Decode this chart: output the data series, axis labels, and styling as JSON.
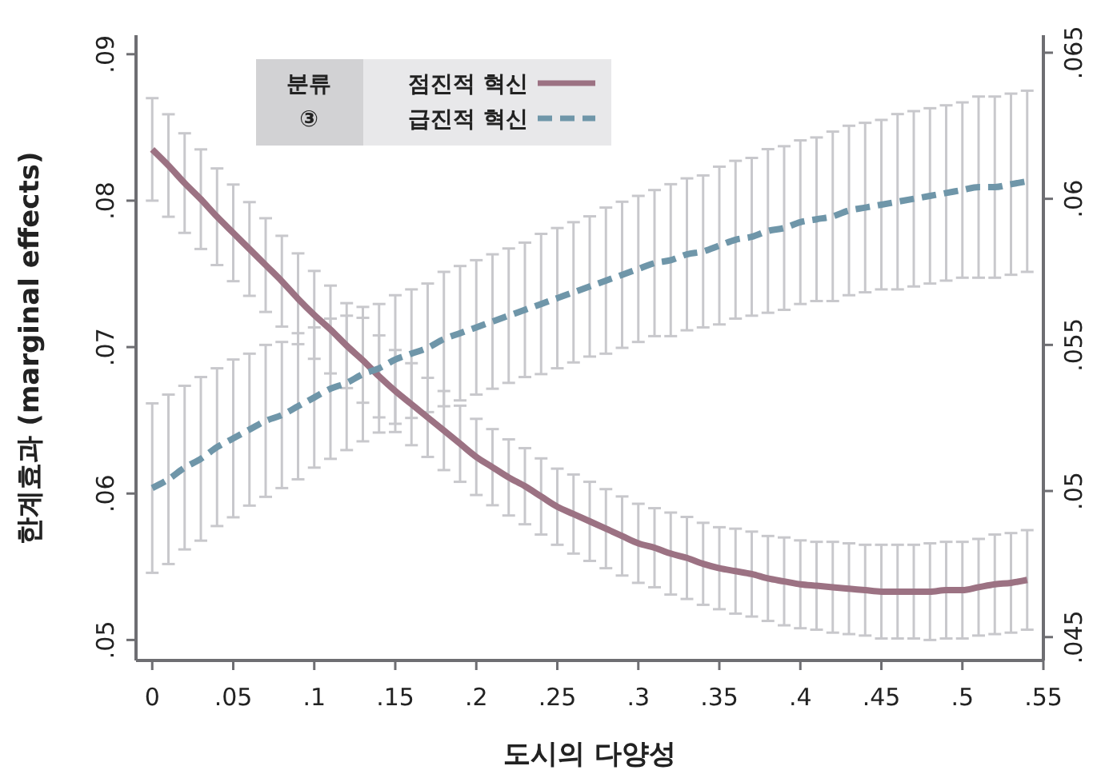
{
  "chart_data": {
    "type": "line",
    "xlabel": "도시의 다양성",
    "ylabel": "한계효과 (marginal effects)",
    "legend_title": "분류 ③",
    "legend": "top left",
    "grid": false,
    "marker": "none",
    "x": [
      0,
      0.01,
      0.02,
      0.03,
      0.04,
      0.05,
      0.06,
      0.07,
      0.08,
      0.09,
      0.1,
      0.11,
      0.12,
      0.13,
      0.14,
      0.15,
      0.16,
      0.17,
      0.18,
      0.19,
      0.2,
      0.21,
      0.22,
      0.23,
      0.24,
      0.25,
      0.26,
      0.27,
      0.28,
      0.29,
      0.3,
      0.31,
      0.32,
      0.33,
      0.34,
      0.35,
      0.36,
      0.37,
      0.38,
      0.39,
      0.4,
      0.41,
      0.42,
      0.43,
      0.44,
      0.45,
      0.46,
      0.47,
      0.48,
      0.49,
      0.5,
      0.51,
      0.52,
      0.53,
      0.54
    ],
    "xlim": [
      -0.01,
      0.55
    ],
    "xticks": [
      0,
      {
        "value": 0.05,
        "label": ".05"
      },
      {
        "value": 0.1,
        "label": ".1"
      },
      {
        "value": 0.15,
        "label": ".15"
      },
      {
        "value": 0.2,
        "label": ".2"
      },
      {
        "value": 0.25,
        "label": ".25"
      },
      {
        "value": 0.3,
        "label": ".3"
      },
      {
        "value": 0.35,
        "label": ".35"
      },
      {
        "value": 0.4,
        "label": ".4"
      },
      {
        "value": 0.45,
        "label": ".45"
      },
      {
        "value": 0.5,
        "label": ".5"
      },
      {
        "value": 0.55,
        "label": ".55"
      }
    ],
    "ylim": [
      0.0486,
      0.0913
    ],
    "yticks": [
      {
        "value": 0.05,
        "label": ".05"
      },
      {
        "value": 0.06,
        "label": ".06"
      },
      {
        "value": 0.07,
        "label": ".07"
      },
      {
        "value": 0.08,
        "label": ".08"
      },
      {
        "value": 0.09,
        "label": ".09"
      }
    ],
    "y2lim": [
      0.0442,
      0.0656
    ],
    "y2ticks": [
      {
        "value": 0.045,
        "label": ".045"
      },
      {
        "value": 0.05,
        "label": ".05"
      },
      {
        "value": 0.055,
        "label": ".055"
      },
      {
        "value": 0.06,
        "label": ".06"
      },
      {
        "value": 0.065,
        "label": ".065"
      }
    ],
    "series": [
      {
        "name": "점진적 혁신",
        "color": "#9c7283",
        "line_style": "solid",
        "values": [
          0.0835,
          0.0824,
          0.0812,
          0.0801,
          0.0789,
          0.0778,
          0.0767,
          0.0756,
          0.0745,
          0.0733,
          0.0722,
          0.0712,
          0.0701,
          0.0691,
          0.068,
          0.067,
          0.0661,
          0.0652,
          0.0643,
          0.0634,
          0.0625,
          0.0618,
          0.0611,
          0.0605,
          0.0598,
          0.0591,
          0.0586,
          0.0581,
          0.0576,
          0.0571,
          0.0566,
          0.0563,
          0.0559,
          0.0556,
          0.0552,
          0.0549,
          0.0547,
          0.0545,
          0.0542,
          0.054,
          0.0538,
          0.0537,
          0.0536,
          0.0535,
          0.0534,
          0.0533,
          0.0533,
          0.0533,
          0.0533,
          0.0534,
          0.0534,
          0.0536,
          0.0538,
          0.0539,
          0.0541
        ],
        "errors": [
          0.0035,
          0.0035,
          0.0034,
          0.0034,
          0.0033,
          0.0033,
          0.0032,
          0.0032,
          0.0031,
          0.0031,
          0.003,
          0.003,
          0.0029,
          0.0029,
          0.0028,
          0.0028,
          0.0028,
          0.0027,
          0.0027,
          0.0026,
          0.0026,
          0.0026,
          0.0026,
          0.0026,
          0.0026,
          0.0026,
          0.0027,
          0.0027,
          0.0027,
          0.0027,
          0.0027,
          0.0027,
          0.0028,
          0.0028,
          0.0028,
          0.0028,
          0.0029,
          0.0029,
          0.0029,
          0.003,
          0.003,
          0.003,
          0.0031,
          0.0031,
          0.0031,
          0.0032,
          0.0032,
          0.0032,
          0.0033,
          0.0033,
          0.0033,
          0.0033,
          0.0034,
          0.0034,
          0.0034
        ]
      },
      {
        "name": "급진적 혁신",
        "color": "#6f96a9",
        "line_style": "dashed",
        "axis": "y2",
        "values": [
          0.0501,
          0.0504,
          0.0508,
          0.0511,
          0.0515,
          0.0518,
          0.0521,
          0.0524,
          0.0526,
          0.0529,
          0.0532,
          0.0535,
          0.0537,
          0.054,
          0.0542,
          0.0545,
          0.0547,
          0.0549,
          0.0552,
          0.0554,
          0.0556,
          0.0558,
          0.056,
          0.0562,
          0.0564,
          0.0566,
          0.0568,
          0.057,
          0.0572,
          0.0574,
          0.0576,
          0.0578,
          0.0579,
          0.0581,
          0.0582,
          0.0584,
          0.0586,
          0.0587,
          0.0589,
          0.059,
          0.0592,
          0.0593,
          0.0594,
          0.0596,
          0.0597,
          0.0598,
          0.0599,
          0.06,
          0.0601,
          0.0602,
          0.0603,
          0.0604,
          0.0604,
          0.0605,
          0.0606
        ],
        "errors": [
          0.0029,
          0.0029,
          0.0028,
          0.0028,
          0.0027,
          0.0027,
          0.0026,
          0.0026,
          0.0025,
          0.0025,
          0.0024,
          0.0024,
          0.0023,
          0.0023,
          0.0022,
          0.0022,
          0.0022,
          0.0022,
          0.0023,
          0.0023,
          0.0023,
          0.0023,
          0.0023,
          0.0023,
          0.0024,
          0.0024,
          0.0024,
          0.0024,
          0.0025,
          0.0025,
          0.0025,
          0.0025,
          0.0026,
          0.0026,
          0.0026,
          0.0027,
          0.0027,
          0.0027,
          0.0028,
          0.0028,
          0.0028,
          0.0028,
          0.0029,
          0.0029,
          0.0029,
          0.0029,
          0.003,
          0.003,
          0.003,
          0.003,
          0.003,
          0.0031,
          0.0031,
          0.0031,
          0.0031
        ]
      }
    ]
  }
}
